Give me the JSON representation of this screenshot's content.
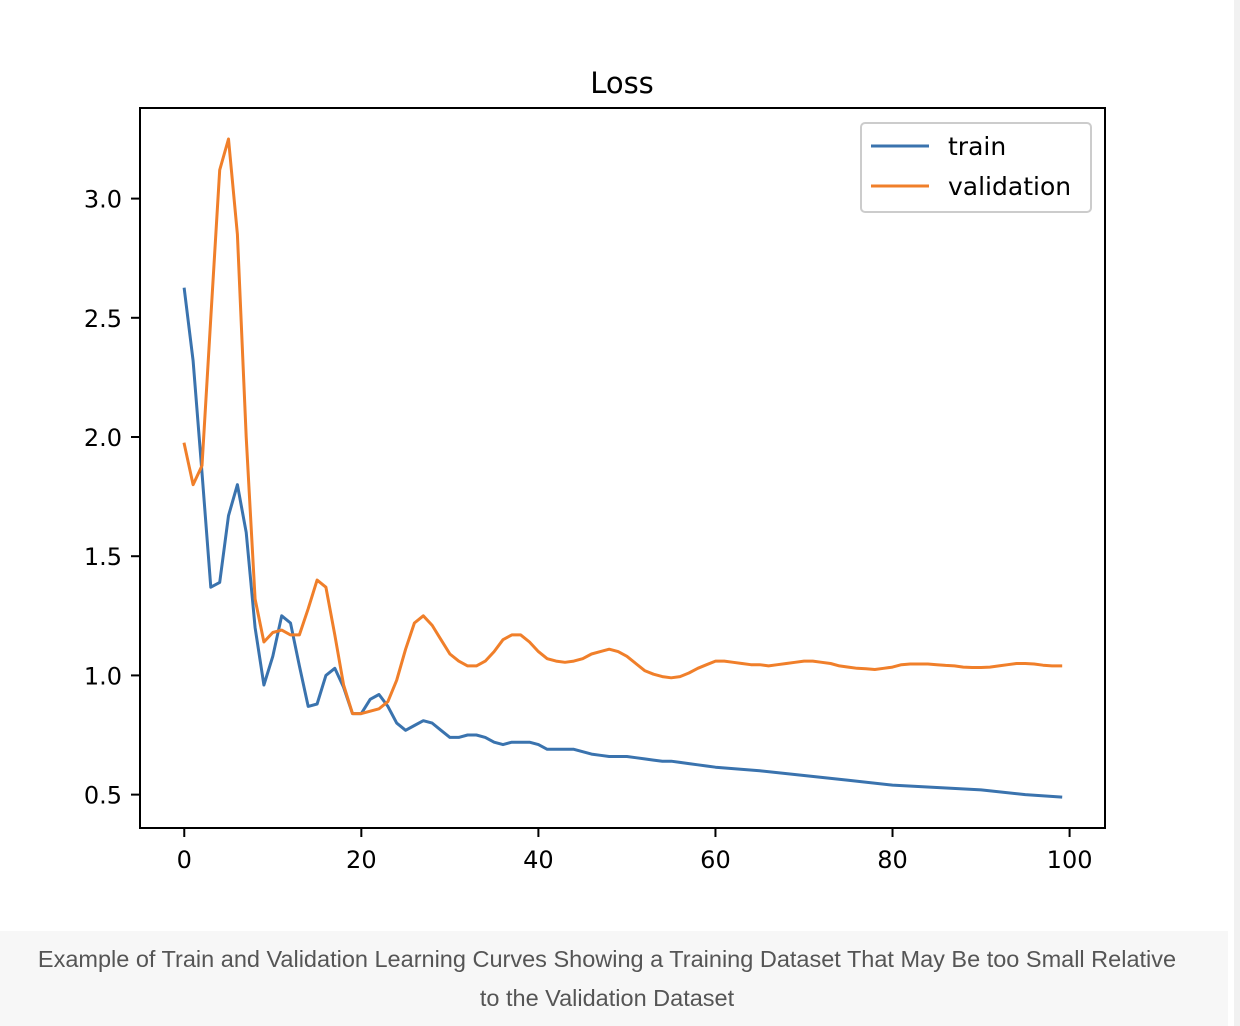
{
  "chart_data": {
    "type": "line",
    "title": "Loss",
    "xlabel": "",
    "ylabel": "",
    "xlim": [
      -5,
      104
    ],
    "ylim": [
      0.36,
      3.38
    ],
    "xticks": [
      0,
      20,
      40,
      60,
      80,
      100
    ],
    "yticks": [
      0.5,
      1.0,
      1.5,
      2.0,
      2.5,
      3.0
    ],
    "xtick_labels": [
      "0",
      "20",
      "40",
      "60",
      "80",
      "100"
    ],
    "ytick_labels": [
      "0.5",
      "1.0",
      "1.5",
      "2.0",
      "2.5",
      "3.0"
    ],
    "grid": false,
    "legend_position": "top-right",
    "series": [
      {
        "name": "train",
        "color": "#3a73ae",
        "x": [
          0,
          1,
          2,
          3,
          4,
          5,
          6,
          7,
          8,
          9,
          10,
          11,
          12,
          13,
          14,
          15,
          16,
          17,
          18,
          19,
          20,
          21,
          22,
          23,
          24,
          25,
          26,
          27,
          28,
          29,
          30,
          31,
          32,
          33,
          34,
          35,
          36,
          37,
          38,
          39,
          40,
          41,
          42,
          43,
          44,
          45,
          46,
          47,
          48,
          49,
          50,
          51,
          52,
          53,
          54,
          55,
          56,
          57,
          58,
          59,
          60,
          65,
          70,
          75,
          80,
          85,
          90,
          95,
          99
        ],
        "y": [
          2.62,
          2.32,
          1.85,
          1.37,
          1.39,
          1.67,
          1.8,
          1.6,
          1.2,
          0.96,
          1.08,
          1.25,
          1.22,
          1.04,
          0.87,
          0.88,
          1.0,
          1.03,
          0.95,
          0.84,
          0.84,
          0.9,
          0.92,
          0.87,
          0.8,
          0.77,
          0.79,
          0.81,
          0.8,
          0.77,
          0.74,
          0.74,
          0.75,
          0.75,
          0.74,
          0.72,
          0.71,
          0.72,
          0.72,
          0.72,
          0.71,
          0.69,
          0.69,
          0.69,
          0.69,
          0.68,
          0.67,
          0.665,
          0.66,
          0.66,
          0.66,
          0.655,
          0.65,
          0.645,
          0.64,
          0.64,
          0.635,
          0.63,
          0.625,
          0.62,
          0.615,
          0.6,
          0.58,
          0.56,
          0.54,
          0.53,
          0.52,
          0.5,
          0.49
        ]
      },
      {
        "name": "validation",
        "color": "#f07f2a",
        "x": [
          0,
          1,
          2,
          3,
          4,
          5,
          6,
          7,
          8,
          9,
          10,
          11,
          12,
          13,
          14,
          15,
          16,
          17,
          18,
          19,
          20,
          21,
          22,
          23,
          24,
          25,
          26,
          27,
          28,
          29,
          30,
          31,
          32,
          33,
          34,
          35,
          36,
          37,
          38,
          39,
          40,
          41,
          42,
          43,
          44,
          45,
          46,
          47,
          48,
          49,
          50,
          51,
          52,
          53,
          54,
          55,
          56,
          57,
          58,
          59,
          60,
          61,
          62,
          63,
          64,
          65,
          66,
          67,
          68,
          69,
          70,
          71,
          72,
          73,
          74,
          75,
          76,
          77,
          78,
          79,
          80,
          81,
          82,
          83,
          84,
          85,
          86,
          87,
          88,
          89,
          90,
          91,
          92,
          93,
          94,
          95,
          96,
          97,
          98,
          99
        ],
        "y": [
          1.97,
          1.8,
          1.88,
          2.5,
          3.12,
          3.25,
          2.85,
          2.0,
          1.32,
          1.14,
          1.18,
          1.19,
          1.17,
          1.17,
          1.28,
          1.4,
          1.37,
          1.17,
          0.96,
          0.84,
          0.84,
          0.85,
          0.86,
          0.89,
          0.98,
          1.11,
          1.22,
          1.25,
          1.21,
          1.15,
          1.09,
          1.06,
          1.04,
          1.04,
          1.06,
          1.1,
          1.15,
          1.17,
          1.17,
          1.14,
          1.1,
          1.07,
          1.06,
          1.055,
          1.06,
          1.07,
          1.09,
          1.1,
          1.11,
          1.1,
          1.08,
          1.05,
          1.02,
          1.005,
          0.995,
          0.99,
          0.995,
          1.01,
          1.03,
          1.045,
          1.06,
          1.06,
          1.055,
          1.05,
          1.045,
          1.045,
          1.04,
          1.045,
          1.05,
          1.055,
          1.06,
          1.06,
          1.055,
          1.05,
          1.04,
          1.035,
          1.03,
          1.028,
          1.025,
          1.03,
          1.035,
          1.045,
          1.048,
          1.048,
          1.048,
          1.045,
          1.042,
          1.04,
          1.035,
          1.033,
          1.033,
          1.035,
          1.04,
          1.045,
          1.05,
          1.05,
          1.048,
          1.043,
          1.04,
          1.04
        ]
      }
    ]
  },
  "caption": {
    "line1": "Example of Train and Validation Learning Curves Showing a Training Dataset That May Be too Small Relative",
    "line2": "to the Validation Dataset"
  }
}
